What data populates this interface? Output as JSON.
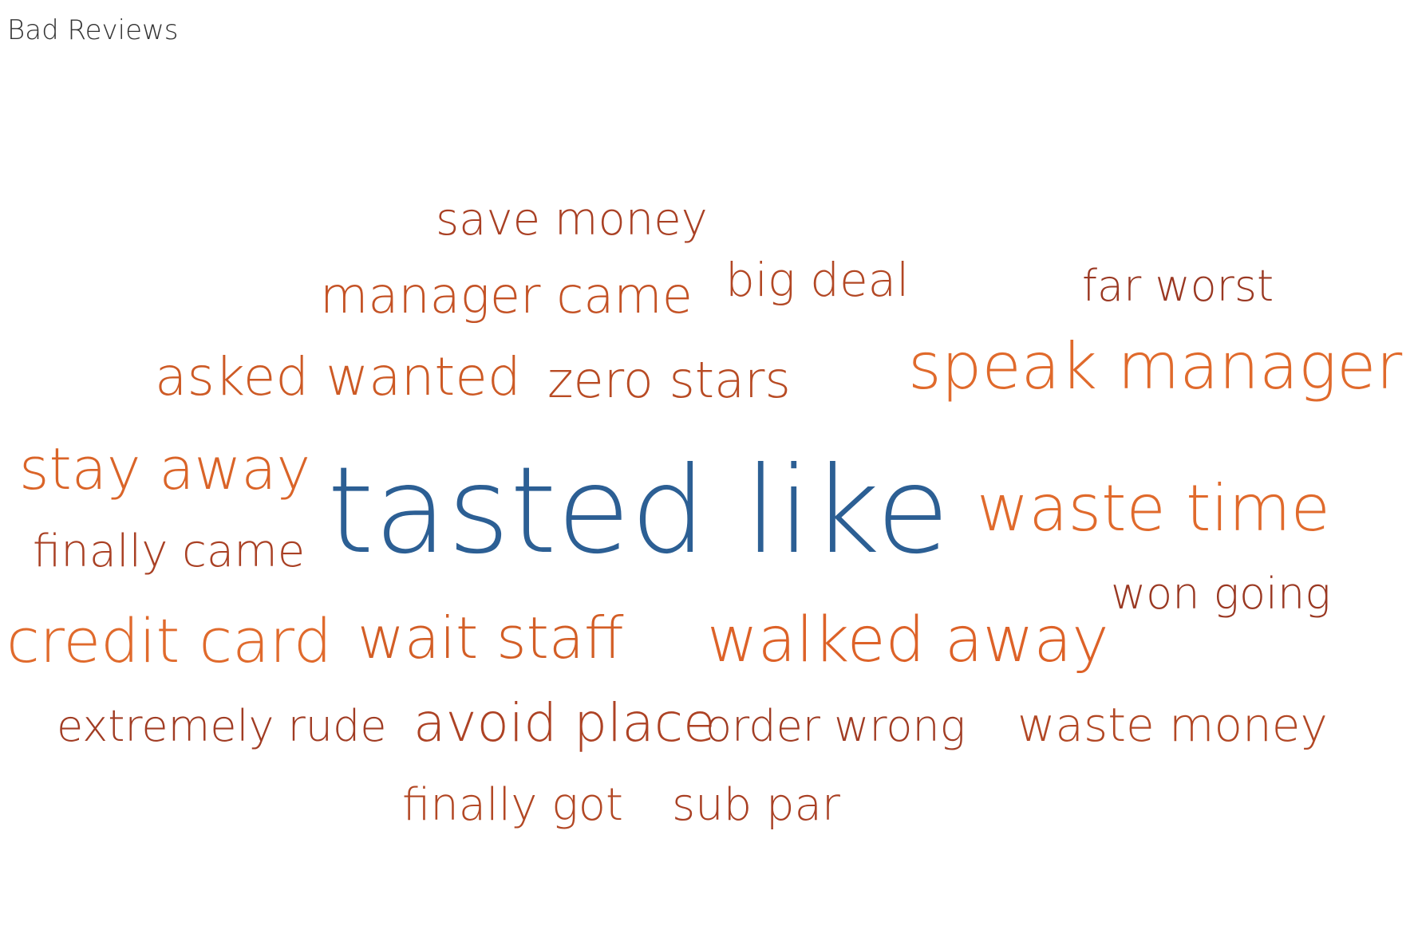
{
  "title": "Bad Reviews",
  "chart_data": {
    "type": "wordcloud",
    "title": "Bad Reviews",
    "words": [
      {
        "text": "tasted like",
        "color": "#2c5f94"
      },
      {
        "text": "speak manager",
        "color": "#e06a2c"
      },
      {
        "text": "waste time",
        "color": "#e06a2c"
      },
      {
        "text": "walked away",
        "color": "#dd6228"
      },
      {
        "text": "credit card",
        "color": "#e06a2c"
      },
      {
        "text": "stay away",
        "color": "#da6428"
      },
      {
        "text": "wait staff",
        "color": "#d35e26"
      },
      {
        "text": "asked wanted",
        "color": "#cd5a25"
      },
      {
        "text": "avoid place",
        "color": "#ad4224"
      },
      {
        "text": "manager came",
        "color": "#c45225"
      },
      {
        "text": "zero stars",
        "color": "#b84b24"
      },
      {
        "text": "waste money",
        "color": "#b24724"
      },
      {
        "text": "big deal",
        "color": "#b24724"
      },
      {
        "text": "save money",
        "color": "#a94024"
      },
      {
        "text": "finally came",
        "color": "#a94024"
      },
      {
        "text": "far worst",
        "color": "#9a3822"
      },
      {
        "text": "won going",
        "color": "#9a3822"
      },
      {
        "text": "extremely rude",
        "color": "#a13c23"
      },
      {
        "text": "order wrong",
        "color": "#a13c23"
      },
      {
        "text": "sub par",
        "color": "#a94024"
      },
      {
        "text": "finally got",
        "color": "#b24724"
      }
    ]
  }
}
